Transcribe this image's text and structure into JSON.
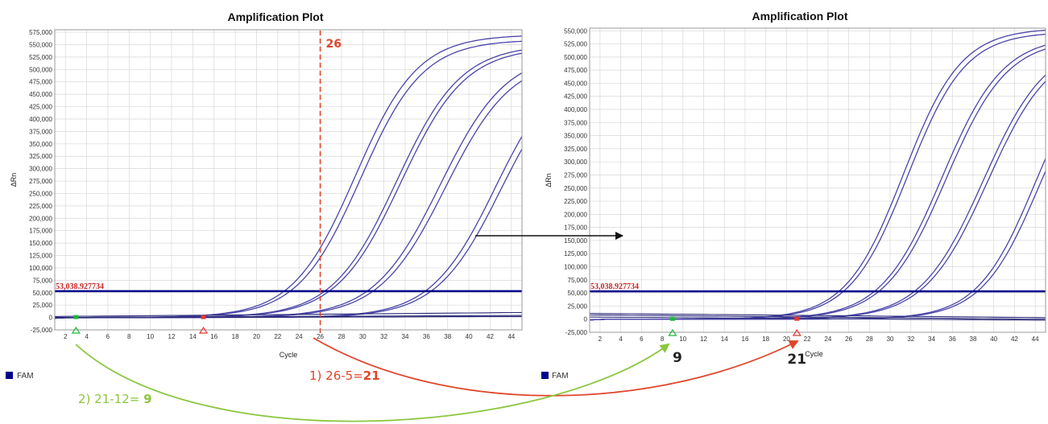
{
  "colors": {
    "curve": "#4a44a8",
    "threshold": "#00008b",
    "red": "#e0452a",
    "green": "#8cc63f",
    "grid": "#d8d8d8"
  },
  "chart_data": [
    {
      "type": "line",
      "title": "Amplification Plot",
      "xlabel": "Cycle",
      "ylabel": "ΔRn",
      "xlim": [
        1,
        45
      ],
      "ylim": [
        -25000,
        580000
      ],
      "x_ticks": [
        2,
        4,
        6,
        8,
        10,
        12,
        14,
        16,
        18,
        20,
        22,
        24,
        26,
        28,
        30,
        32,
        34,
        36,
        38,
        40,
        42,
        44
      ],
      "y_ticks": [
        -25000,
        0,
        25000,
        50000,
        75000,
        100000,
        125000,
        150000,
        175000,
        200000,
        225000,
        250000,
        275000,
        300000,
        325000,
        350000,
        375000,
        400000,
        425000,
        450000,
        475000,
        500000,
        525000,
        550000,
        575000
      ],
      "y_tick_labels": [
        "-25,000",
        "0",
        "25,000",
        "50,000",
        "75,000",
        "100,000",
        "125,000",
        "150,000",
        "175,000",
        "200,000",
        "225,000",
        "250,000",
        "275,000",
        "300,000",
        "325,000",
        "350,000",
        "375,000",
        "400,000",
        "425,000",
        "450,000",
        "475,000",
        "500,000",
        "525,000",
        "550,000",
        "575,000"
      ],
      "threshold": 53038.927734,
      "threshold_label": "53,038.927734",
      "baseline_start": 3,
      "baseline_end": 15,
      "marker_cycle": 26,
      "marker_label": "26",
      "legend": [
        "FAM"
      ],
      "curves": [
        {
          "mid": 29.3,
          "k": 0.34,
          "plateau": 570000
        },
        {
          "mid": 29.8,
          "k": 0.34,
          "plateau": 560000
        },
        {
          "mid": 33.2,
          "k": 0.33,
          "plateau": 550000
        },
        {
          "mid": 33.6,
          "k": 0.33,
          "plateau": 545000
        },
        {
          "mid": 37.3,
          "k": 0.32,
          "plateau": 535000
        },
        {
          "mid": 37.8,
          "k": 0.32,
          "plateau": 525000
        },
        {
          "mid": 42.5,
          "k": 0.33,
          "plateau": 525000
        },
        {
          "mid": 43.0,
          "k": 0.33,
          "plateau": 515000
        }
      ],
      "flat_lines": [
        {
          "start": 2000,
          "end": 10000
        },
        {
          "start": 0,
          "end": 4000
        },
        {
          "start": -1000,
          "end": 2000
        }
      ]
    },
    {
      "type": "line",
      "title": "Amplification Plot",
      "xlabel": "Cycle",
      "ylabel": "ΔRn",
      "xlim": [
        1,
        45
      ],
      "ylim": [
        -25000,
        555000
      ],
      "x_ticks": [
        2,
        4,
        6,
        8,
        10,
        12,
        14,
        16,
        18,
        20,
        22,
        24,
        26,
        28,
        30,
        32,
        34,
        36,
        38,
        40,
        42,
        44
      ],
      "y_ticks": [
        -25000,
        0,
        25000,
        50000,
        75000,
        100000,
        125000,
        150000,
        175000,
        200000,
        225000,
        250000,
        275000,
        300000,
        325000,
        350000,
        375000,
        400000,
        425000,
        450000,
        475000,
        500000,
        525000,
        550000
      ],
      "y_tick_labels": [
        "-25,000",
        "0",
        "25,000",
        "50,000",
        "75,000",
        "100,000",
        "125,000",
        "150,000",
        "175,000",
        "200,000",
        "225,000",
        "250,000",
        "275,000",
        "300,000",
        "325,000",
        "350,000",
        "375,000",
        "400,000",
        "425,000",
        "450,000",
        "475,000",
        "500,000",
        "525,000",
        "550,000"
      ],
      "threshold": 53038.927734,
      "threshold_label": "53,038.927734",
      "baseline_start": 9,
      "baseline_end": 21,
      "baseline_start_label": "9",
      "baseline_end_label": "21",
      "legend": [
        "FAM"
      ],
      "curves": [
        {
          "mid": 31.3,
          "k": 0.36,
          "plateau": 555000
        },
        {
          "mid": 31.7,
          "k": 0.36,
          "plateau": 548000
        },
        {
          "mid": 35.0,
          "k": 0.34,
          "plateau": 540000
        },
        {
          "mid": 35.4,
          "k": 0.34,
          "plateau": 535000
        },
        {
          "mid": 39.0,
          "k": 0.33,
          "plateau": 530000
        },
        {
          "mid": 39.4,
          "k": 0.33,
          "plateau": 525000
        },
        {
          "mid": 44.0,
          "k": 0.36,
          "plateau": 520000
        },
        {
          "mid": 44.4,
          "k": 0.36,
          "plateau": 510000
        }
      ],
      "flat_lines": [
        {
          "start": 11000,
          "end": 3000
        },
        {
          "start": 8000,
          "end": 0
        },
        {
          "start": 4000,
          "end": -2000
        }
      ]
    }
  ],
  "annotations": {
    "step1_prefix": "1) 26-5=",
    "step1_result": "21",
    "step2_prefix": "2) 21-12= ",
    "step2_result": "9"
  }
}
